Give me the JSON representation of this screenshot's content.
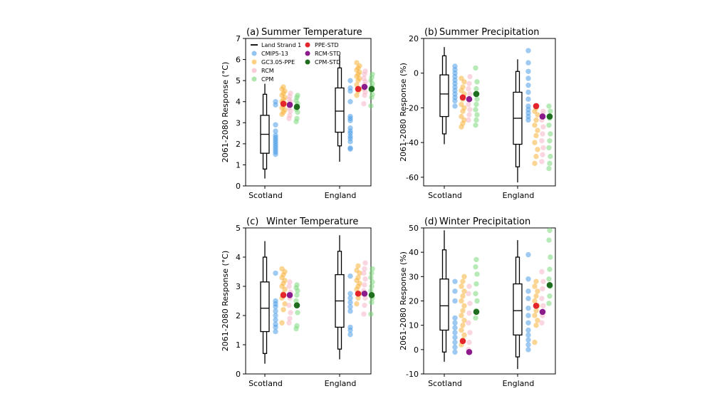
{
  "legend": {
    "items": [
      {
        "label": "Land Strand 1",
        "kind": "line",
        "color": "#000000"
      },
      {
        "label": "CMIP5-13",
        "kind": "dot",
        "color": "#7fb8ee"
      },
      {
        "label": "GC3.05-PPE",
        "kind": "dot",
        "color": "#fbc96e"
      },
      {
        "label": "RCM",
        "kind": "dot",
        "color": "#f7c4d0"
      },
      {
        "label": "CPM",
        "kind": "dot",
        "color": "#9fe09f"
      },
      {
        "label": "PPE-STD",
        "kind": "dot",
        "color": "#e4252b"
      },
      {
        "label": "RCM-STD",
        "kind": "dot",
        "color": "#8b1a8b"
      },
      {
        "label": "CPM-STD",
        "kind": "dot",
        "color": "#1f6e1f"
      }
    ]
  },
  "colors": {
    "cmip": "#4f9ee8",
    "ppe": "#f8b33c",
    "rcm": "#f5b7c7",
    "cpm": "#7dd87d",
    "ppe_std": "#e4252b",
    "rcm_std": "#8b1a8b",
    "cpm_std": "#1f6e1f"
  },
  "chart_data": [
    {
      "type": "box-strip",
      "panel": "(a)",
      "title": "Summer Temperature",
      "ylabel": "2061-2080 Response (°C)",
      "ylim": [
        0,
        7
      ],
      "yticks": [
        0,
        1,
        2,
        3,
        4,
        5,
        6,
        7
      ],
      "categories": [
        "Scotland",
        "England"
      ],
      "land_strand": [
        {
          "whisker_low": 0.35,
          "inner_low": 0.8,
          "q1": 1.55,
          "median": 2.45,
          "q3": 3.35,
          "inner_high": 4.35,
          "whisker_high": 4.85
        },
        {
          "whisker_low": 1.15,
          "inner_low": 1.9,
          "q1": 2.55,
          "median": 3.55,
          "q3": 4.65,
          "inner_high": 5.6,
          "whisker_high": 6.2
        }
      ],
      "cmip": [
        [
          1.5,
          1.6,
          1.7,
          1.8,
          1.9,
          2.0,
          2.1,
          2.2,
          2.3,
          2.4,
          2.6,
          2.9,
          3.85,
          4.0
        ],
        [
          1.75,
          1.8,
          2.1,
          2.25,
          2.35,
          2.5,
          2.6,
          2.75,
          3.1,
          3.2,
          3.3,
          4.0,
          4.5,
          4.65,
          5.0
        ]
      ],
      "ppe": [
        [
          3.4,
          3.5,
          3.6,
          3.7,
          3.8,
          3.9,
          4.0,
          4.1,
          4.2,
          4.3,
          4.4,
          4.5,
          4.6,
          4.7
        ],
        [
          4.3,
          4.5,
          4.6,
          4.8,
          5.0,
          5.1,
          5.2,
          5.3,
          5.4,
          5.5,
          5.6,
          5.7,
          5.85
        ]
      ],
      "rcm": [
        [
          3.2,
          3.35,
          3.55,
          3.7,
          3.9,
          4.0,
          4.1,
          4.25,
          4.4
        ],
        [
          3.9,
          4.3,
          4.45,
          4.6,
          4.8,
          4.95,
          5.1,
          5.3,
          5.45
        ]
      ],
      "cpm": [
        [
          3.05,
          3.2,
          3.5,
          3.65,
          3.8,
          3.9,
          4.05,
          4.2,
          4.3
        ],
        [
          3.8,
          4.2,
          4.35,
          4.55,
          4.7,
          4.85,
          5.0,
          5.15,
          5.3
        ]
      ],
      "ppe_std": [
        3.9,
        4.6
      ],
      "rcm_std": [
        3.85,
        4.7
      ],
      "cpm_std": [
        3.75,
        4.6
      ]
    },
    {
      "type": "box-strip",
      "panel": "(b)",
      "title": "Summer Precipitation",
      "ylabel": "2061-2080 Response (%)",
      "ylim": [
        -65,
        20
      ],
      "yticks": [
        -60,
        -40,
        -20,
        0,
        20
      ],
      "categories": [
        "Scotland",
        "England"
      ],
      "land_strand": [
        {
          "whisker_low": -41,
          "inner_low": -35,
          "q1": -25,
          "median": -12,
          "q3": -1,
          "inner_high": 10,
          "whisker_high": 15
        },
        {
          "whisker_low": -63,
          "inner_low": -54,
          "q1": -41,
          "median": -26,
          "q3": -11,
          "inner_high": 1,
          "whisker_high": 8
        }
      ],
      "cmip": [
        [
          -19,
          -16,
          -14,
          -12,
          -10,
          -8,
          -6,
          -4,
          -2,
          0,
          2,
          4
        ],
        [
          -27,
          -25,
          -23,
          -21,
          -19,
          -15,
          -11,
          -7,
          -3,
          1,
          6,
          13
        ]
      ],
      "ppe": [
        [
          -31,
          -29,
          -27,
          -25,
          -22,
          -20,
          -18,
          -15,
          -12,
          -10,
          -8,
          -5,
          -3
        ],
        [
          -52,
          -48,
          -44,
          -40,
          -36,
          -33,
          -30,
          -27,
          -24,
          -22,
          -20
        ]
      ],
      "rcm": [
        [
          -27,
          -24,
          -21,
          -18,
          -15,
          -12,
          -9,
          -6,
          -2
        ],
        [
          -51,
          -47,
          -43,
          -39,
          -35,
          -31,
          -27,
          -24,
          -22
        ]
      ],
      "cpm": [
        [
          -30,
          -27,
          -24,
          -21,
          -18,
          -15,
          -12,
          -9,
          -5,
          3
        ],
        [
          -55,
          -52,
          -48,
          -43,
          -39,
          -35,
          -30,
          -26,
          -22,
          -19
        ]
      ],
      "ppe_std": [
        -14,
        -19
      ],
      "rcm_std": [
        -15,
        -25
      ],
      "cpm_std": [
        -12,
        -25
      ]
    },
    {
      "type": "box-strip",
      "panel": "(c)",
      "title": "Winter Temperature",
      "ylabel": "2061-2080 Response (°C)",
      "ylim": [
        0,
        5
      ],
      "yticks": [
        0,
        1,
        2,
        3,
        4,
        5
      ],
      "categories": [
        "Scotland",
        "England"
      ],
      "land_strand": [
        {
          "whisker_low": 0.35,
          "inner_low": 0.7,
          "q1": 1.45,
          "median": 2.25,
          "q3": 3.15,
          "inner_high": 4.0,
          "whisker_high": 4.55
        },
        {
          "whisker_low": 0.5,
          "inner_low": 0.85,
          "q1": 1.6,
          "median": 2.5,
          "q3": 3.4,
          "inner_high": 4.2,
          "whisker_high": 4.75
        }
      ],
      "cmip": [
        [
          1.45,
          1.6,
          1.7,
          1.85,
          2.0,
          2.15,
          2.3,
          2.4,
          2.5,
          3.45
        ],
        [
          1.35,
          1.5,
          1.6,
          2.15,
          2.3,
          2.45,
          2.6,
          2.75,
          3.35
        ]
      ],
      "ppe": [
        [
          1.75,
          2.2,
          2.4,
          2.6,
          2.75,
          2.9,
          3.0,
          3.1,
          3.2,
          3.3,
          3.4,
          3.5,
          3.6
        ],
        [
          2.4,
          2.6,
          2.75,
          2.9,
          3.0,
          3.1,
          3.2,
          3.3,
          3.45,
          3.55,
          3.7
        ]
      ],
      "rcm": [
        [
          1.75,
          1.9,
          2.1,
          2.35,
          2.6,
          2.8,
          3.0,
          3.15
        ],
        [
          2.05,
          2.35,
          2.6,
          2.85,
          3.05,
          3.25,
          3.45,
          3.6,
          3.8
        ]
      ],
      "cpm": [
        [
          1.55,
          1.65,
          2.1,
          2.5,
          2.7,
          2.85,
          2.95,
          3.05
        ],
        [
          2.05,
          2.45,
          2.6,
          2.85,
          3.0,
          3.15,
          3.3,
          3.45,
          3.6
        ]
      ],
      "ppe_std": [
        2.7,
        2.75
      ],
      "rcm_std": [
        2.7,
        2.75
      ],
      "cpm_std": [
        2.35,
        2.7
      ]
    },
    {
      "type": "box-strip",
      "panel": "(d)",
      "title": "Winter Precipitation",
      "ylabel": "2061-2080 Response (%)",
      "ylim": [
        -10,
        50
      ],
      "yticks": [
        -10,
        0,
        10,
        20,
        30,
        40,
        50
      ],
      "categories": [
        "Scotland",
        "England"
      ],
      "land_strand": [
        {
          "whisker_low": -5,
          "inner_low": -1,
          "q1": 8,
          "median": 18,
          "q3": 29,
          "inner_high": 41,
          "whisker_high": 49
        },
        {
          "whisker_low": -8,
          "inner_low": -3,
          "q1": 6,
          "median": 16,
          "q3": 27,
          "inner_high": 38,
          "whisker_high": 45
        }
      ],
      "cmip": [
        [
          -1,
          1,
          3,
          5,
          7,
          9,
          11,
          13,
          20,
          24,
          28
        ],
        [
          0,
          2,
          4,
          6,
          8,
          11,
          14,
          17,
          21,
          24,
          29,
          39
        ]
      ],
      "ppe": [
        [
          2,
          4,
          6,
          8,
          10,
          12,
          14,
          16,
          18,
          20,
          22,
          24,
          26,
          28,
          30
        ],
        [
          3,
          10,
          12,
          14,
          16,
          18,
          20,
          22,
          24,
          26,
          28
        ]
      ],
      "rcm": [
        [
          0,
          3,
          7,
          11,
          15,
          19,
          23,
          26
        ],
        [
          11,
          14,
          18,
          21,
          25,
          28,
          32
        ]
      ],
      "cpm": [
        [
          13,
          16,
          20,
          23,
          27,
          31,
          34,
          37
        ],
        [
          19,
          22,
          26,
          29,
          33,
          38,
          45,
          49
        ]
      ],
      "ppe_std": [
        3.5,
        18
      ],
      "rcm_std": [
        -1,
        15.5
      ],
      "cpm_std": [
        15.5,
        26.5
      ]
    }
  ]
}
